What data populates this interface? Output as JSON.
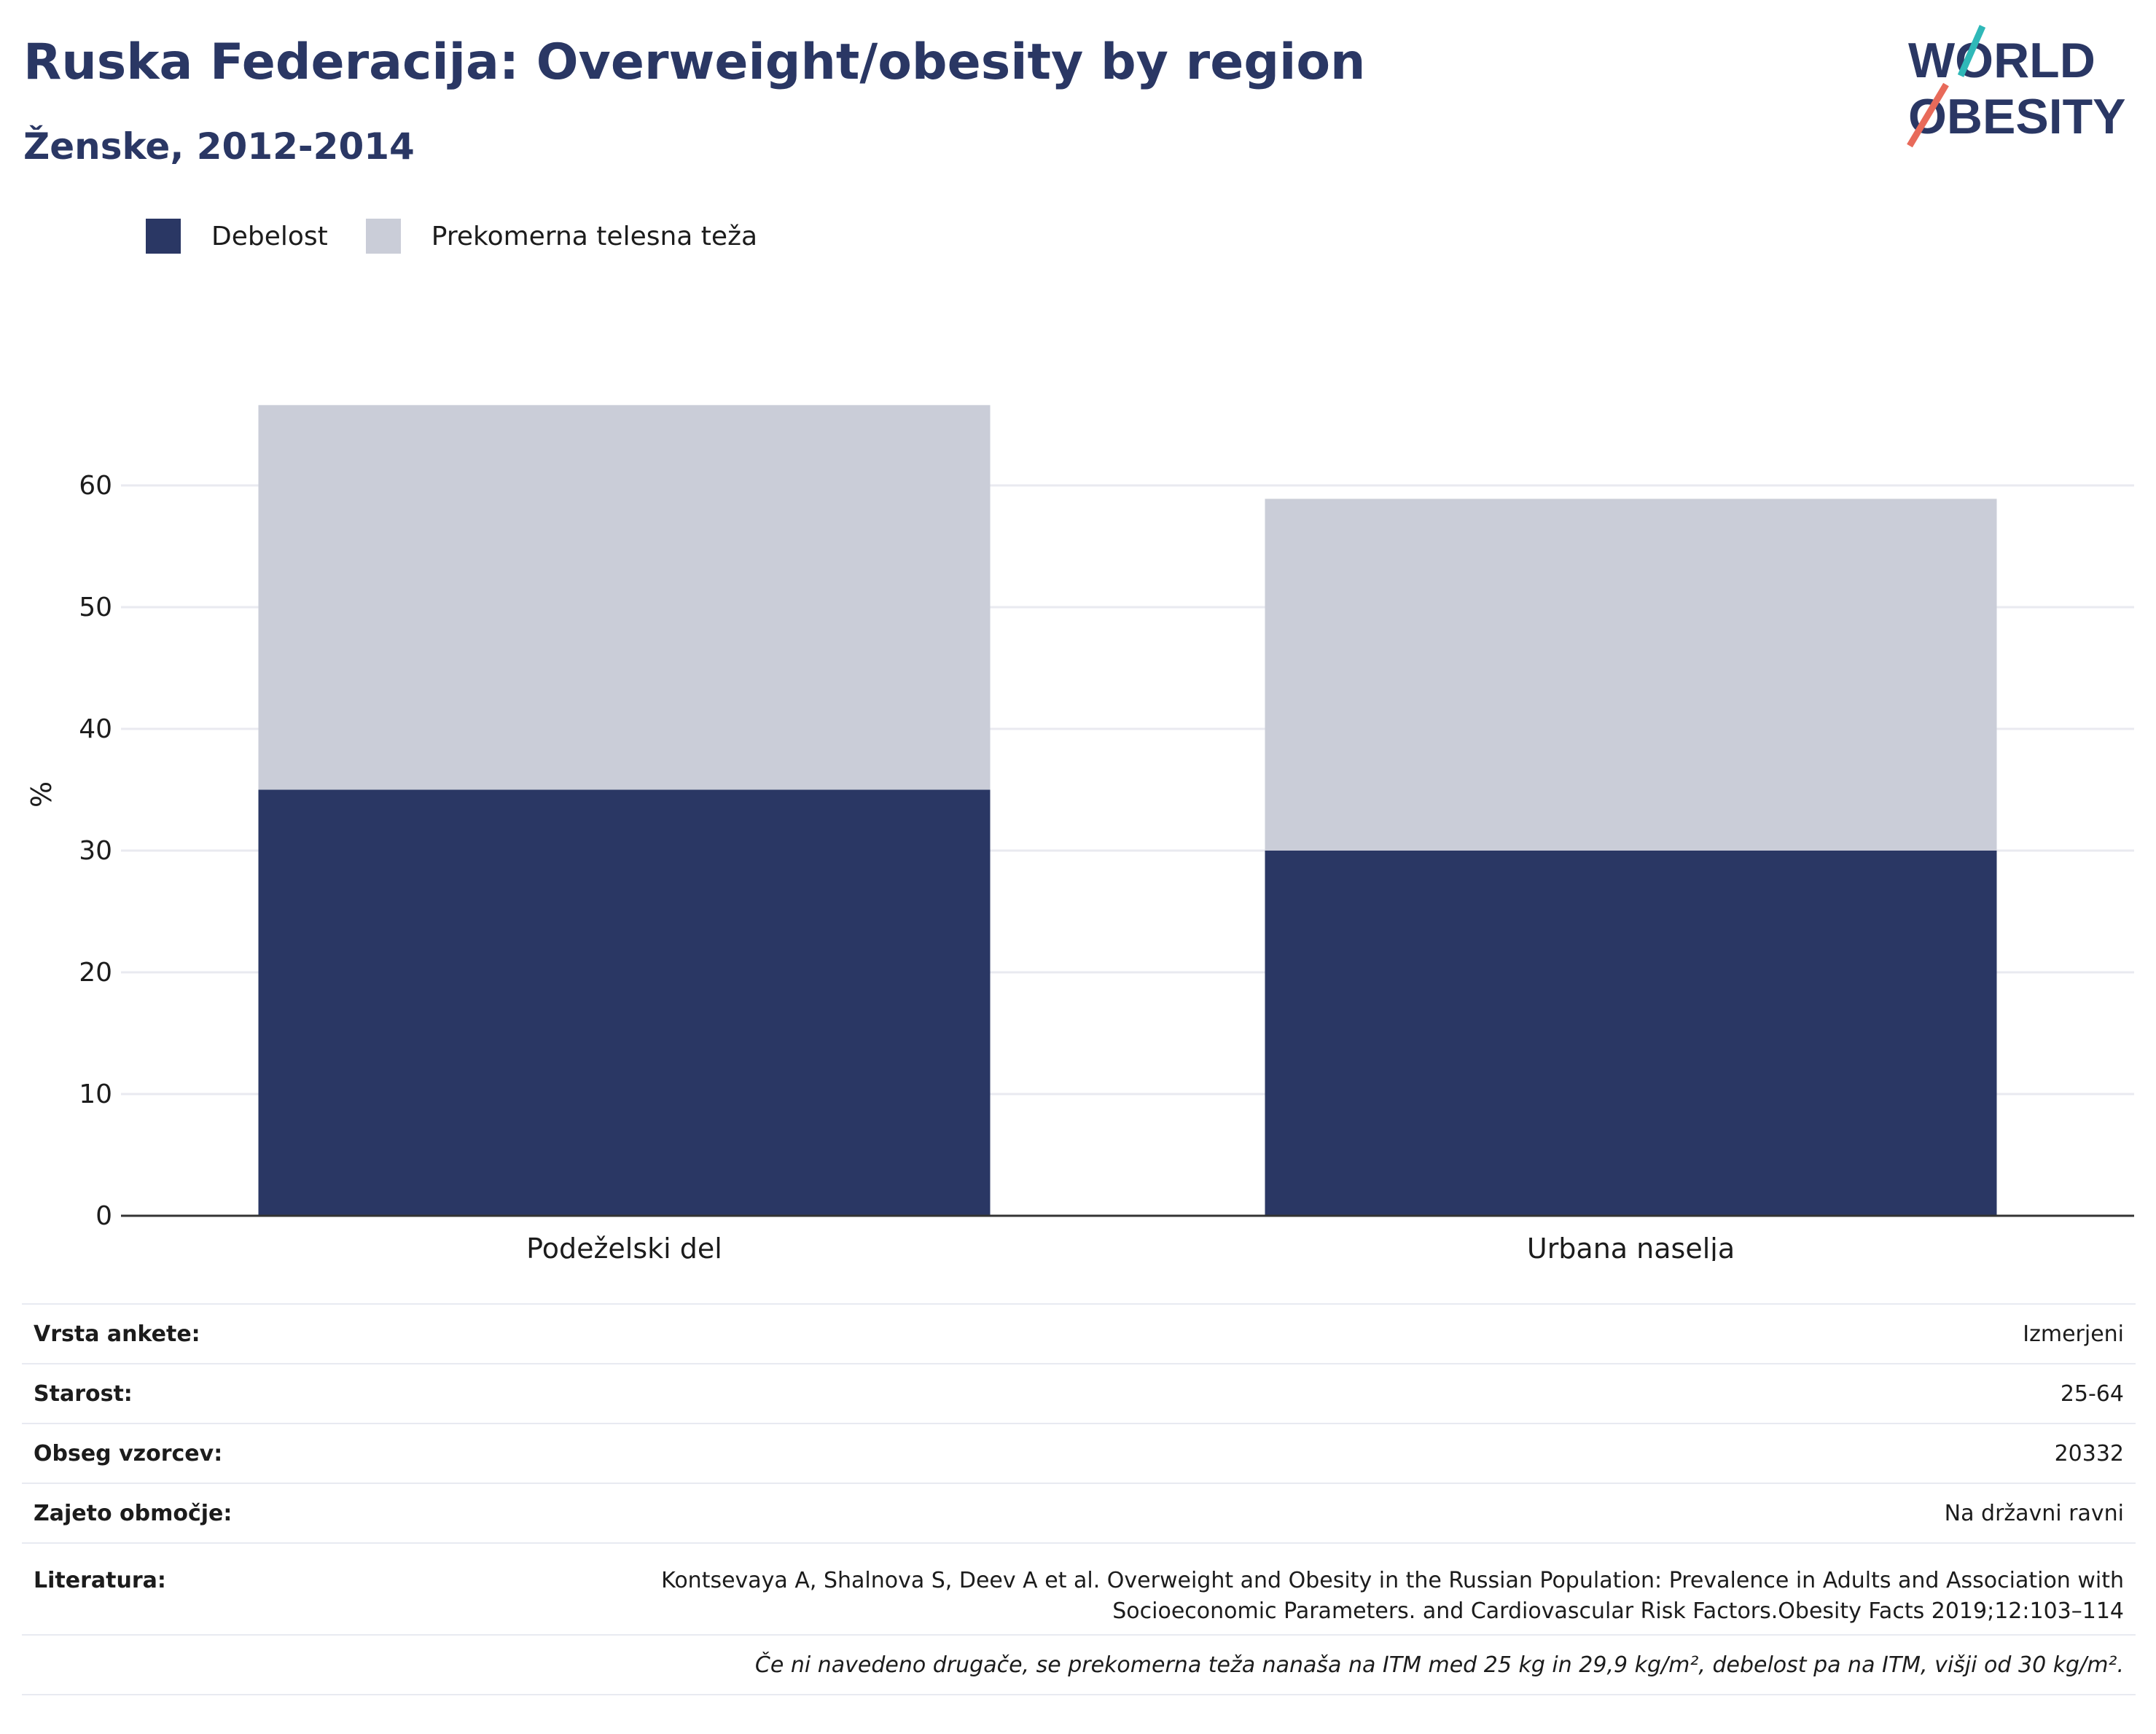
{
  "header": {
    "title": "Ruska Federacija: Overweight/obesity by region",
    "subtitle": "Ženske, 2012-2014"
  },
  "logo": {
    "line1": "WORLD",
    "line2": "OBESITY"
  },
  "legend": [
    {
      "label": "Debelost",
      "color": "#2a3764"
    },
    {
      "label": "Prekomerna telesna teža",
      "color": "#cacdd8"
    }
  ],
  "chart_data": {
    "type": "bar",
    "stacked": true,
    "categories": [
      "Podeželski del",
      "Urbana naselja"
    ],
    "series": [
      {
        "name": "Debelost",
        "color": "#2a3764",
        "values": [
          35.0,
          30.0
        ]
      },
      {
        "name": "Prekomerna telesna teža",
        "color": "#cacdd8",
        "values": [
          31.6,
          28.9
        ]
      }
    ],
    "totals": [
      66.6,
      58.9
    ],
    "ylabel": "%",
    "ylim": [
      0,
      70
    ],
    "yticks": [
      0,
      10,
      20,
      30,
      40,
      50,
      60
    ],
    "grid": true,
    "legend_position": "top-left"
  },
  "info": {
    "survey_type": {
      "label": "Vrsta ankete:",
      "value": "Izmerjeni"
    },
    "age": {
      "label": "Starost:",
      "value": "25-64"
    },
    "sample": {
      "label": "Obseg vzorcev:",
      "value": "20332"
    },
    "area": {
      "label": "Zajeto območje:",
      "value": "Na državni ravni"
    },
    "reference": {
      "label": "Literatura:",
      "line1": "Kontsevaya A, Shalnova S, Deev A et al. Overweight and Obesity in the Russian Population: Prevalence in Adults and Association with",
      "line2": "Socioeconomic Parameters. and Cardiovascular Risk Factors.Obesity Facts 2019;12:103–114"
    },
    "note": "Če ni navedeno drugače, se prekomerna teža nanaša na ITM med 25 kg in 29,9 kg/m², debelost pa na ITM, višji od 30 kg/m²."
  }
}
